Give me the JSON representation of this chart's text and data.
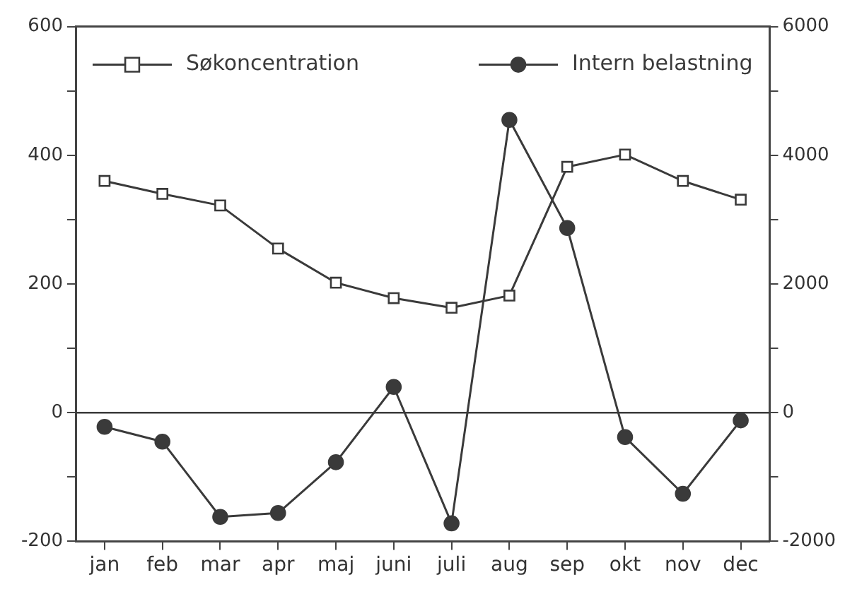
{
  "chart_data": {
    "type": "line",
    "categories": [
      "jan",
      "feb",
      "mar",
      "apr",
      "maj",
      "juni",
      "juli",
      "aug",
      "sep",
      "okt",
      "nov",
      "dec"
    ],
    "series": [
      {
        "name": "Søkoncentration",
        "color": "#3a3a3a",
        "marker": "square",
        "values": [
          360,
          340,
          322,
          255,
          202,
          178,
          163,
          182,
          382,
          401,
          360,
          331
        ]
      },
      {
        "name": "Intern belastning",
        "color": "#3a3a3a",
        "marker": "circle",
        "axis": "y2",
        "values": [
          -220,
          -450,
          -1620,
          -1560,
          -770,
          400,
          -1720,
          4550,
          2870,
          -380,
          -1260,
          -120
        ]
      }
    ],
    "ylim": [
      -200,
      600
    ],
    "yticks": [
      -200,
      {
        "value": -100,
        "label": null
      },
      0,
      {
        "value": 100,
        "label": null
      },
      200,
      {
        "value": 300,
        "label": null
      },
      400,
      {
        "value": 500,
        "label": null
      },
      600
    ],
    "y2lim": [
      -2000,
      6000
    ],
    "y2ticks": [
      -2000,
      {
        "value": -1000,
        "label": null
      },
      0,
      {
        "value": 1000,
        "label": null
      },
      2000,
      {
        "value": 3000,
        "label": null
      },
      4000,
      {
        "value": 5000,
        "label": null
      },
      6000
    ],
    "ref_lines": [
      {
        "axis": "y",
        "value": 0,
        "color": "#3a3a3a"
      }
    ],
    "grid": false,
    "legend": "top",
    "line_style": "solid"
  }
}
